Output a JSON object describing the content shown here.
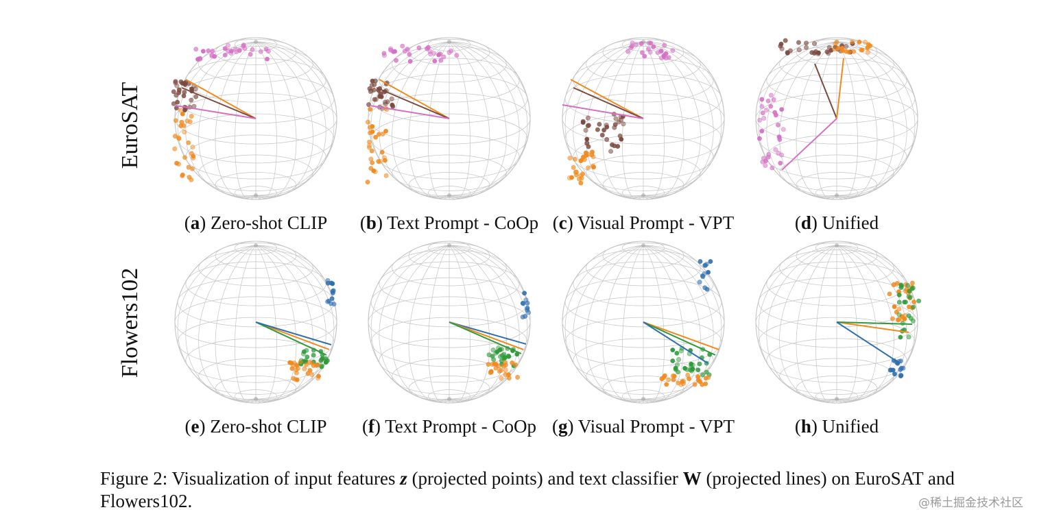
{
  "rows": [
    {
      "label": "EuroSAT"
    },
    {
      "label": "Flowers102"
    }
  ],
  "panels": [
    {
      "letter": "a",
      "title": "Zero-shot CLIP",
      "dataset": "EuroSAT",
      "classes": [
        "pink",
        "brown",
        "orange"
      ]
    },
    {
      "letter": "b",
      "title": "Text Prompt - CoOp",
      "dataset": "EuroSAT",
      "classes": [
        "pink",
        "brown",
        "orange"
      ]
    },
    {
      "letter": "c",
      "title": "Visual Prompt - VPT",
      "dataset": "EuroSAT",
      "classes": [
        "pink",
        "brown",
        "orange"
      ]
    },
    {
      "letter": "d",
      "title": "Unified",
      "dataset": "EuroSAT",
      "classes": [
        "pink",
        "brown",
        "orange"
      ]
    },
    {
      "letter": "e",
      "title": "Zero-shot CLIP",
      "dataset": "Flowers102",
      "classes": [
        "blue",
        "green",
        "orange"
      ]
    },
    {
      "letter": "f",
      "title": "Text Prompt - CoOp",
      "dataset": "Flowers102",
      "classes": [
        "blue",
        "green",
        "orange"
      ]
    },
    {
      "letter": "g",
      "title": "Visual Prompt - VPT",
      "dataset": "Flowers102",
      "classes": [
        "blue",
        "green",
        "orange"
      ]
    },
    {
      "letter": "h",
      "title": "Unified",
      "dataset": "Flowers102",
      "classes": [
        "blue",
        "green",
        "orange"
      ]
    }
  ],
  "colors": {
    "pink": "#d46fc4",
    "brown": "#7b4a3f",
    "orange": "#f08a1f",
    "blue": "#2f6fb0",
    "green": "#2f9a3a",
    "grid": "#c4c4c4"
  },
  "caption": {
    "prefix": "Figure 2: Visualization of input features ",
    "z": "z",
    "mid1": " (projected points) and text classifier ",
    "W": "W",
    "mid2": " (projected lines) on EuroSAT and Flowers102."
  },
  "watermark": "@稀土掘金技术社区"
}
